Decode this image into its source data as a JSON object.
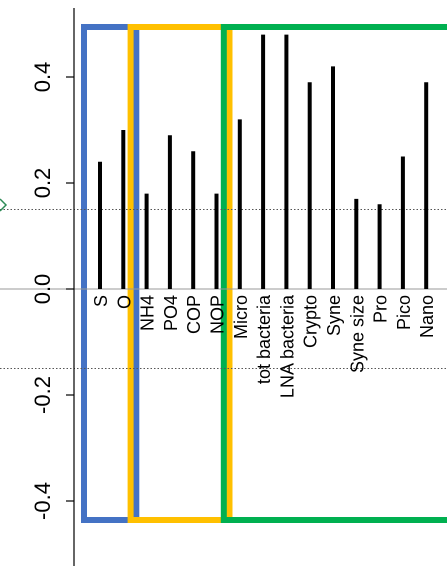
{
  "chart_data": {
    "type": "bar",
    "orientation": "rotated-90",
    "categories": [
      "S",
      "O",
      "NH4",
      "PO4",
      "COP",
      "NOP",
      "Micro",
      "tot bacteria",
      "LNA bacteria",
      "Crypto",
      "Syne",
      "Syne size",
      "Pro",
      "Pico",
      "Nano"
    ],
    "values": [
      0.24,
      0.3,
      0.18,
      0.29,
      0.26,
      0.18,
      0.32,
      0.48,
      0.48,
      0.39,
      0.42,
      0.17,
      0.16,
      0.25,
      0.39
    ],
    "ylim": [
      -0.5,
      0.5
    ],
    "yticks": [
      {
        "value": -0.4,
        "label": "-0.4"
      },
      {
        "value": -0.2,
        "label": "-0.2"
      },
      {
        "value": 0.0,
        "label": "0.0"
      },
      {
        "value": 0.2,
        "label": "0.2"
      },
      {
        "value": 0.4,
        "label": "0.4"
      }
    ],
    "thresholds": [
      0.15,
      -0.15
    ],
    "title": "",
    "xlabel": "",
    "ylabel": "",
    "groups": [
      {
        "start": 0,
        "end": 1,
        "color": "#4472c4"
      },
      {
        "start": 2,
        "end": 5,
        "color": "#ffc000"
      },
      {
        "start": 6,
        "end": 14,
        "color": "#00b050"
      }
    ],
    "bar_color": "#000000",
    "marker_color": "#2e8b57"
  }
}
